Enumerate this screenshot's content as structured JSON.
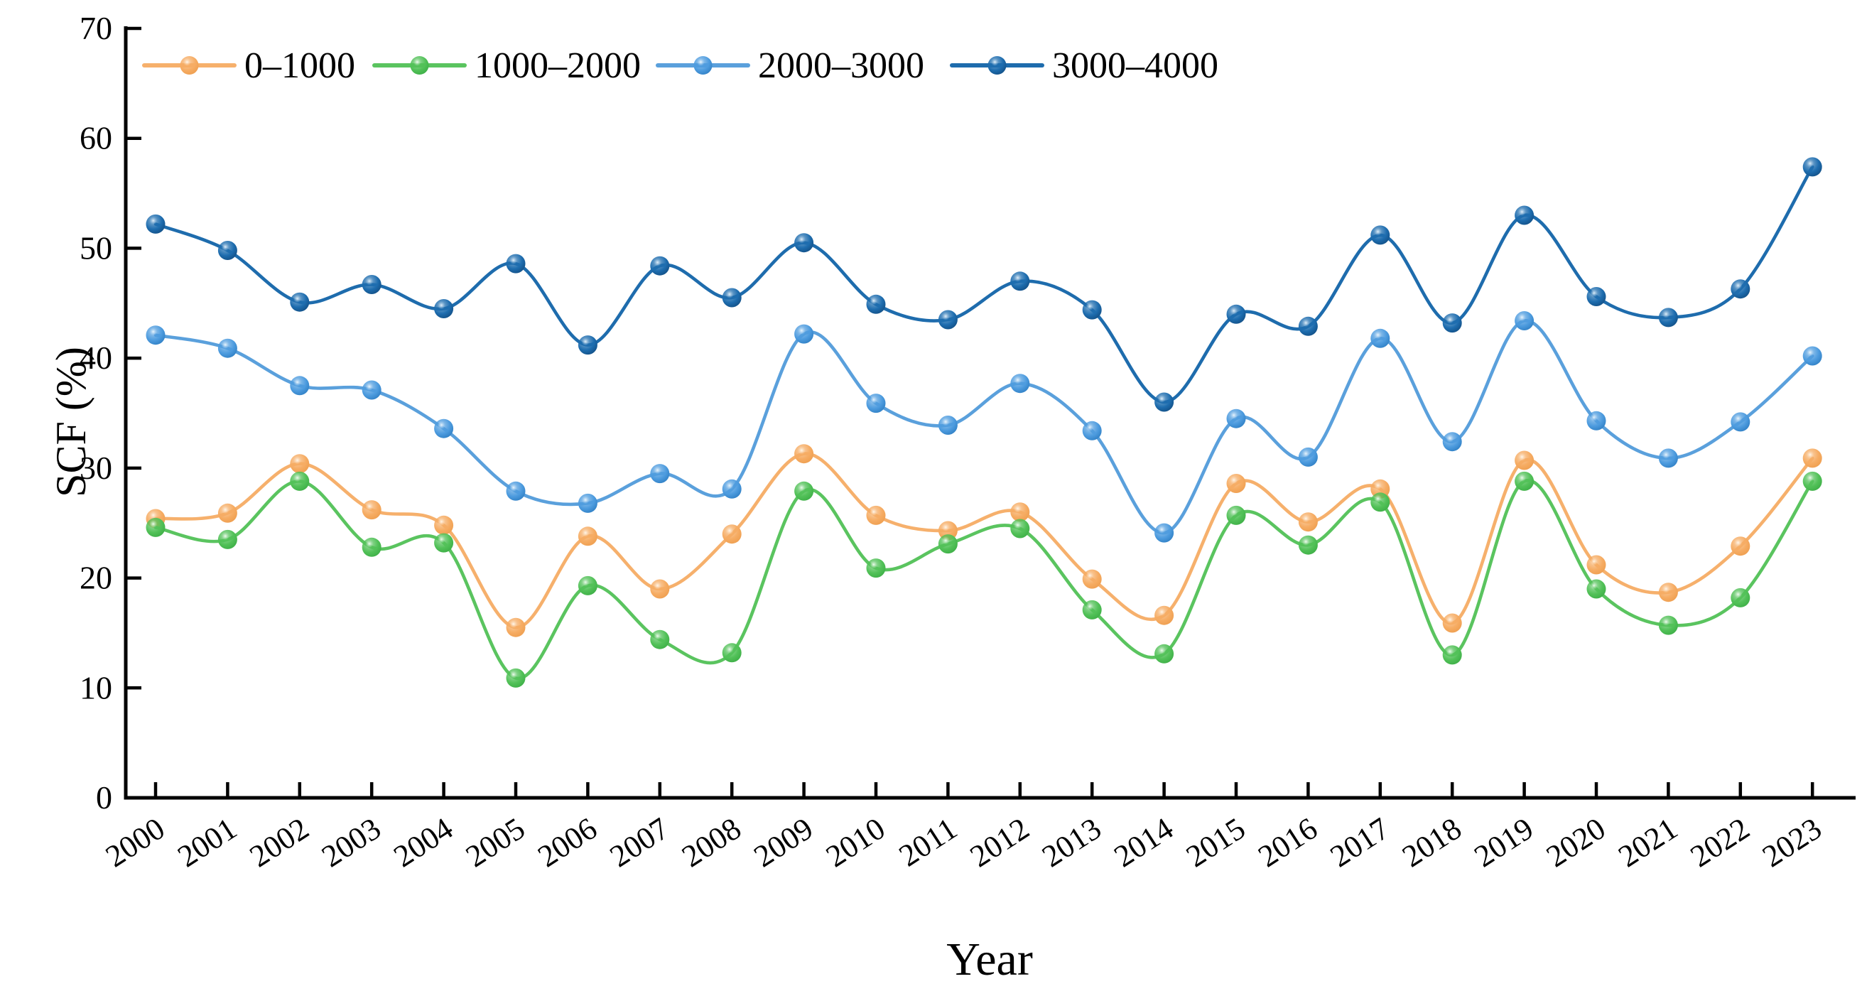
{
  "chart_data": {
    "type": "line",
    "title": "",
    "xlabel": "Year",
    "ylabel": "SCF (%)",
    "x": [
      2000,
      2001,
      2002,
      2003,
      2004,
      2005,
      2006,
      2007,
      2008,
      2009,
      2010,
      2011,
      2012,
      2013,
      2014,
      2015,
      2016,
      2017,
      2018,
      2019,
      2020,
      2021,
      2022,
      2023
    ],
    "ylim": [
      0,
      70
    ],
    "yticks": [
      0,
      10,
      20,
      30,
      40,
      50,
      60,
      70
    ],
    "grid": false,
    "legend_position": "top-inside-horizontal",
    "marker_style": "3d-sphere",
    "axis_color": "#000000",
    "series": [
      {
        "name": "0–1000",
        "line_color": "#F6B06C",
        "marker_body": "#F6AC63",
        "marker_rim": "#EE9E4F",
        "marker_highlight": "#FFF6EA",
        "values": [
          25.4,
          25.9,
          30.4,
          26.2,
          24.8,
          15.5,
          23.8,
          19.0,
          24.0,
          31.3,
          25.7,
          24.3,
          26.0,
          19.9,
          16.6,
          28.6,
          25.1,
          28.1,
          15.9,
          30.7,
          21.2,
          18.7,
          22.9,
          30.9
        ]
      },
      {
        "name": "1000–2000",
        "line_color": "#5AC45F",
        "marker_body": "#52C158",
        "marker_rim": "#3DAE46",
        "marker_highlight": "#EFFBEF",
        "values": [
          24.6,
          23.5,
          28.8,
          22.8,
          23.2,
          10.9,
          19.3,
          14.4,
          13.2,
          27.9,
          20.9,
          23.1,
          24.5,
          17.1,
          13.1,
          25.7,
          23.0,
          26.9,
          13.0,
          28.8,
          19.0,
          15.7,
          18.2,
          28.8
        ]
      },
      {
        "name": "2000–3000",
        "line_color": "#5AA0DC",
        "marker_body": "#4E9CDF",
        "marker_rim": "#2F7FC4",
        "marker_highlight": "#EAF5FD",
        "values": [
          42.1,
          40.9,
          37.5,
          37.1,
          33.6,
          27.9,
          26.8,
          29.5,
          28.1,
          42.2,
          35.9,
          33.9,
          37.7,
          33.4,
          24.1,
          34.5,
          31.0,
          41.8,
          32.4,
          43.4,
          34.3,
          30.9,
          34.2,
          40.2
        ]
      },
      {
        "name": "3000–4000",
        "line_color": "#1E6CAD",
        "marker_body": "#1E6DAF",
        "marker_rim": "#124F85",
        "marker_highlight": "#E2F0FA",
        "values": [
          52.2,
          49.8,
          45.1,
          46.7,
          44.5,
          48.6,
          41.2,
          48.4,
          45.5,
          50.5,
          44.9,
          43.5,
          47.0,
          44.4,
          36.0,
          44.0,
          42.9,
          51.2,
          43.2,
          53.0,
          45.6,
          43.7,
          46.3,
          57.4
        ]
      }
    ]
  }
}
